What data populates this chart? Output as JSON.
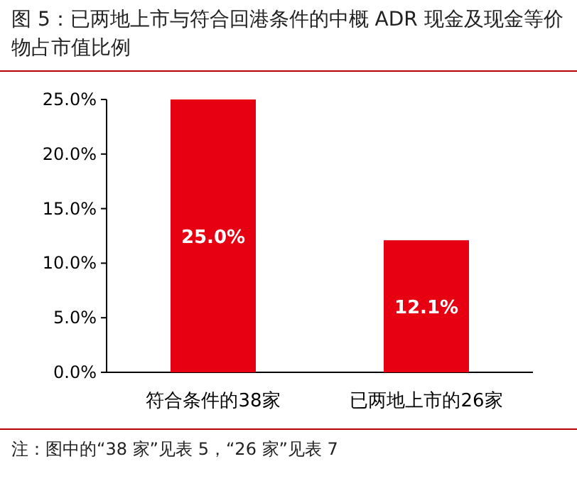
{
  "chart_data": {
    "type": "bar",
    "title": "图 5：已两地上市与符合回港条件的中概 ADR 现金及现金等价物占市值比例",
    "categories": [
      "符合条件的38家",
      "已两地上市的26家"
    ],
    "values": [
      25.0,
      12.1
    ],
    "value_labels": [
      "25.0%",
      "12.1%"
    ],
    "color": "#e60012",
    "ylim": [
      0,
      25
    ],
    "yticks": [
      {
        "value": 0,
        "label": "0.0%"
      },
      {
        "value": 5,
        "label": "5.0%"
      },
      {
        "value": 10,
        "label": "10.0%"
      },
      {
        "value": 15,
        "label": "15.0%"
      },
      {
        "value": 20,
        "label": "20.0%"
      },
      {
        "value": 25,
        "label": "25.0%"
      }
    ],
    "annotations": [
      "注：图中的“38 家”见表 5，“26 家”见表 7"
    ]
  }
}
